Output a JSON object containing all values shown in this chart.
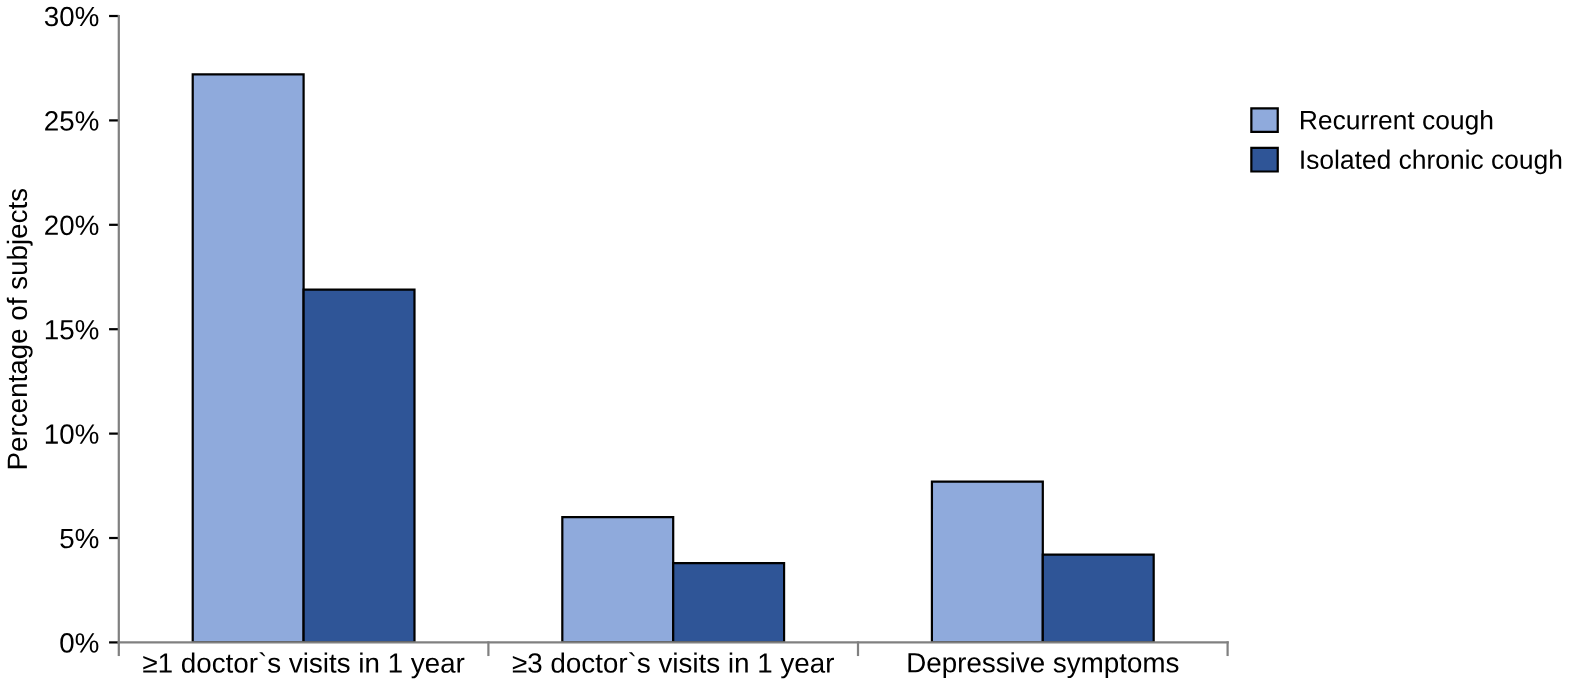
{
  "chart_data": {
    "type": "bar",
    "ylabel": "Percentage of subjects",
    "categories": [
      "≥1 doctor`s visits in 1 year",
      "≥3 doctor`s visits in 1 year",
      "Depressive symptoms"
    ],
    "series": [
      {
        "name": "Recurrent cough",
        "color": "#8faadc",
        "values": [
          27.2,
          6.0,
          7.7
        ]
      },
      {
        "name": "Isolated chronic cough",
        "color": "#2f5597",
        "values": [
          16.9,
          3.8,
          4.2
        ]
      }
    ],
    "ylim": [
      0,
      30
    ],
    "yticks": [
      {
        "value": 0,
        "label": "0%"
      },
      {
        "value": 5,
        "label": "5%"
      },
      {
        "value": 10,
        "label": "10%"
      },
      {
        "value": 15,
        "label": "15%"
      },
      {
        "value": 20,
        "label": "20%"
      },
      {
        "value": 25,
        "label": "25%"
      },
      {
        "value": 30,
        "label": "30%"
      }
    ],
    "grid": false,
    "legend": "right"
  }
}
